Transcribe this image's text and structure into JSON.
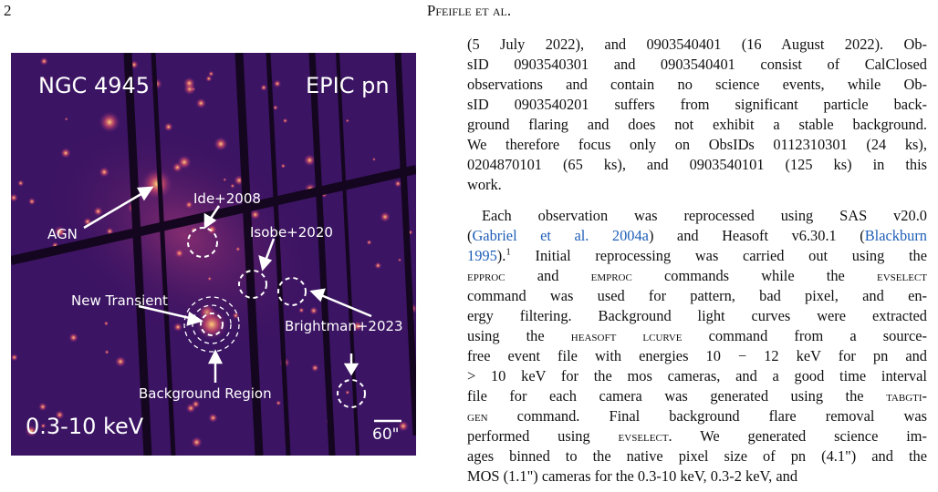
{
  "header": {
    "page_number": "2",
    "running_title": "Pfeifle et al."
  },
  "figure": {
    "labels": {
      "target": "NGC 4945",
      "instrument": "EPIC pn",
      "ide": "Ide+2008",
      "agn": "AGN",
      "isobe": "Isobe+2020",
      "transient": "New Transient",
      "brightman": "Brightman+2023",
      "background": "Background Region",
      "band": "0.3-10 keV",
      "scale": "60\""
    }
  },
  "body": {
    "paragraphs": [
      {
        "lines": [
          [
            "(5 July 2022), and 0903540401 (16 August 2022). Ob-"
          ],
          [
            "sID 0903540301 and 0903540401 consist of CalClosed"
          ],
          [
            "observations and contain no science events, while Ob-"
          ],
          [
            "sID 0903540201 suffers from significant particle back-"
          ],
          [
            "ground flaring and does not exhibit a stable background."
          ],
          [
            "We therefore focus only on ObsIDs 0112310301 (24 ks),"
          ],
          [
            "0204870101 (65 ks), and 0903540101 (125 ks) in this"
          ],
          [
            "work."
          ]
        ]
      },
      {
        "lines": [
          [
            "Each observation was reprocessed using SAS v20.0"
          ],
          [
            "(",
            {
              "text": "Gabriel et al. 2004a",
              "style": "link"
            },
            ") and Heasoft v6.30.1 (",
            {
              "text": "Blackburn",
              "style": "link"
            }
          ],
          [
            {
              "text": "1995",
              "style": "link"
            },
            ").",
            {
              "text": "1",
              "style": "sup"
            },
            " Initial reprocessing was carried out using the"
          ],
          [
            {
              "text": "epproc",
              "style": "sc"
            },
            " and ",
            {
              "text": "emproc",
              "style": "sc"
            },
            " commands while the ",
            {
              "text": "evselect",
              "style": "sc"
            }
          ],
          [
            "command was used for pattern, bad pixel, and en-"
          ],
          [
            "ergy filtering. Background light curves were extracted"
          ],
          [
            "using the ",
            {
              "text": "heasoft lcurve",
              "style": "sc"
            },
            " command from a source-"
          ],
          [
            "free event file with energies 10 − 12 keV for pn and"
          ],
          [
            "> 10 keV for the mos cameras, and a good time interval"
          ],
          [
            "file for each camera was generated using the ",
            {
              "text": "tabgti-",
              "style": "sc"
            }
          ],
          [
            {
              "text": "gen",
              "style": "sc"
            },
            " command. Final background flare removal was"
          ],
          [
            "performed using ",
            {
              "text": "evselect",
              "style": "sc"
            },
            ". We generated science im-"
          ],
          [
            "ages binned to the native pixel size of pn (4.1\") and the"
          ],
          [
            "MOS (1.1\") cameras for the 0.3-10 keV, 0.3-2 keV, and"
          ]
        ]
      }
    ]
  }
}
